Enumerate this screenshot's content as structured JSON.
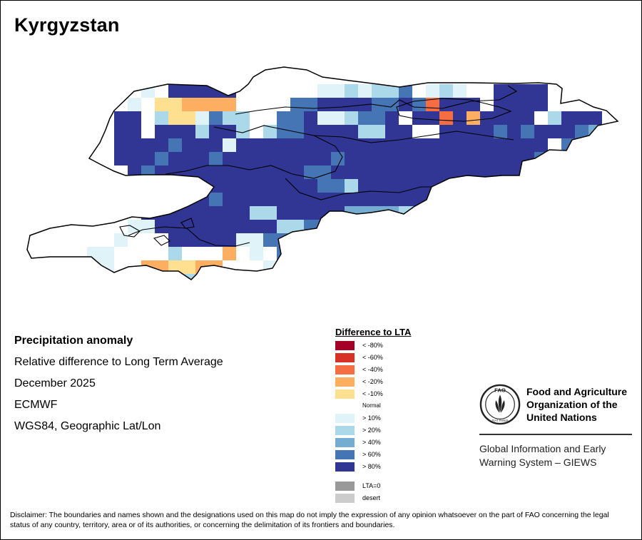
{
  "map": {
    "title": "Kyrgyzstan",
    "country": "Kyrgyzstan"
  },
  "info": {
    "heading": "Precipitation anomaly",
    "subtitle": "Relative difference to Long Term Average",
    "period": "December 2025",
    "source": "ECMWF",
    "projection": "WGS84, Geographic Lat/Lon"
  },
  "legend": {
    "title": "Difference to LTA",
    "items": [
      {
        "label": "< -80%",
        "color": "#a50026"
      },
      {
        "label": "< -60%",
        "color": "#d73027"
      },
      {
        "label": "< -40%",
        "color": "#f46d43"
      },
      {
        "label": "< -20%",
        "color": "#fdae61"
      },
      {
        "label": "< -10%",
        "color": "#fee090"
      },
      {
        "label": "Normal",
        "color": "#ffffff"
      },
      {
        "label": "> 10%",
        "color": "#e0f3f8"
      },
      {
        "label": "> 20%",
        "color": "#abd9e9"
      },
      {
        "label": "> 40%",
        "color": "#74add1"
      },
      {
        "label": "> 60%",
        "color": "#4575b4"
      },
      {
        "label": "> 80%",
        "color": "#313695"
      },
      {
        "label": "LTA=0",
        "color": "#999999"
      },
      {
        "label": "desert",
        "color": "#cccccc"
      }
    ]
  },
  "org": {
    "logo_text": "FAO",
    "logo_motto": "FIAT PANIS",
    "name_line1": "Food and Agriculture",
    "name_line2": "Organization of the",
    "name_line3": "United Nations",
    "system_line1": "Global Information and Early",
    "system_line2": "Warning System – GIEWS"
  },
  "disclaimer": "Disclaimer: The boundaries and names shown and the designations used on this map do not imply the expression of any opinion whatsoever on the part of FAO concerning the legal status of any country, territory, area or of its authorities, or concerning the delimitation of its frontiers and boundaries."
}
